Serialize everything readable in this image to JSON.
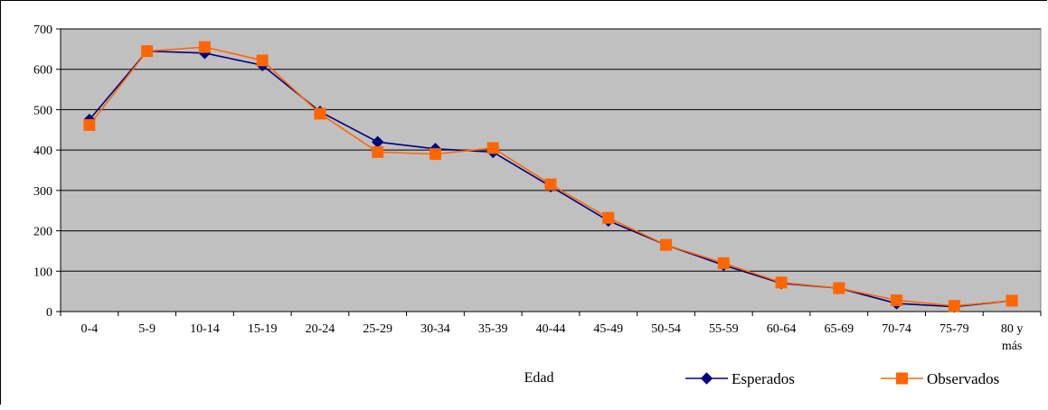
{
  "chart_data": {
    "type": "line",
    "categories": [
      "0-4",
      "5-9",
      "10-14",
      "15-19",
      "20-24",
      "25-29",
      "30-34",
      "35-39",
      "40-44",
      "45-49",
      "50-54",
      "55-59",
      "60-64",
      "65-69",
      "70-74",
      "75-79",
      "80 y más"
    ],
    "category_lines": [
      [
        "0-4"
      ],
      [
        "5-9"
      ],
      [
        "10-14"
      ],
      [
        "15-19"
      ],
      [
        "20-24"
      ],
      [
        "25-29"
      ],
      [
        "30-34"
      ],
      [
        "35-39"
      ],
      [
        "40-44"
      ],
      [
        "45-49"
      ],
      [
        "50-54"
      ],
      [
        "55-59"
      ],
      [
        "60-64"
      ],
      [
        "65-69"
      ],
      [
        "70-74"
      ],
      [
        "75-79"
      ],
      [
        "80 y",
        "más"
      ]
    ],
    "series": [
      {
        "name": "Esperados",
        "color": "#000080",
        "marker": "diamond",
        "values": [
          475,
          645,
          640,
          610,
          495,
          420,
          403,
          395,
          310,
          225,
          165,
          115,
          70,
          58,
          20,
          12,
          27
        ]
      },
      {
        "name": "Observados",
        "color": "#FF6600",
        "marker": "square",
        "values": [
          462,
          645,
          655,
          622,
          490,
          395,
          390,
          405,
          315,
          232,
          165,
          120,
          72,
          58,
          28,
          14,
          27
        ]
      }
    ],
    "xlabel": "Edad",
    "ylabel": "",
    "ylim": [
      0,
      700
    ],
    "yticks": [
      0,
      100,
      200,
      300,
      400,
      500,
      600,
      700
    ],
    "grid": true,
    "plot_background": "#C0C0C0",
    "legend_position": "bottom-right"
  }
}
